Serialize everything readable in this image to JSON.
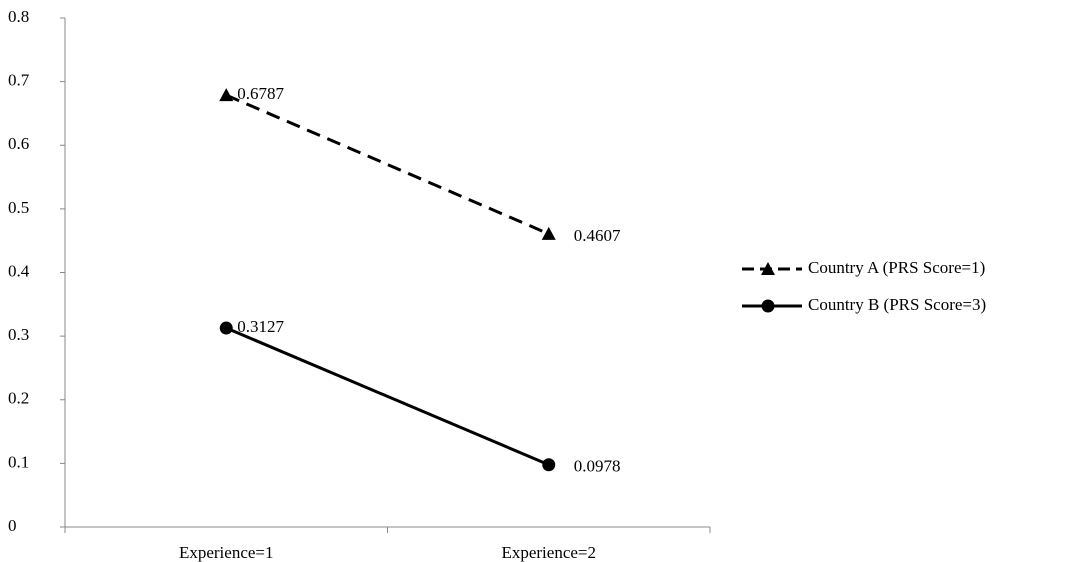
{
  "chart_data": {
    "type": "line",
    "categories": [
      "Experience=1",
      "Experience=2"
    ],
    "series": [
      {
        "name": "Country A (PRS Score=1)",
        "color": "#000000",
        "dash": "dashed",
        "marker": "triangle",
        "values": [
          0.6787,
          0.4607
        ]
      },
      {
        "name": "Country B (PRS Score=3)",
        "color": "#000000",
        "dash": "solid",
        "marker": "circle",
        "values": [
          0.3127,
          0.0978
        ]
      }
    ],
    "ylim": [
      0,
      0.8
    ],
    "yticks": [
      0,
      0.1,
      0.2,
      0.3,
      0.4,
      0.5,
      0.6,
      0.7,
      0.8
    ],
    "grid": false,
    "legend": "right",
    "data_labels": true
  }
}
